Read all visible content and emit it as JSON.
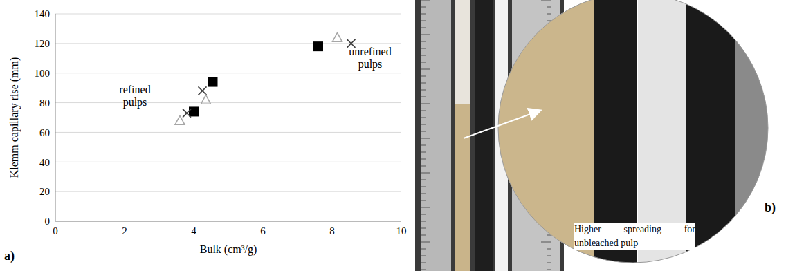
{
  "chart_data": {
    "type": "scatter",
    "x_label": "Bulk (cm³/g)",
    "y_label": "Klemm capillary rise (mm)",
    "xlim": [
      0,
      10
    ],
    "xticks": [
      0,
      2,
      4,
      6,
      8,
      10
    ],
    "ylim": [
      0,
      140
    ],
    "yticks": [
      0,
      20,
      40,
      60,
      80,
      100,
      120,
      140
    ],
    "grid": true,
    "series": [
      {
        "color": "#000000",
        "marker": "square",
        "x": [
          4.0,
          4.55,
          7.6
        ],
        "values": [
          74,
          94,
          118
        ]
      },
      {
        "color": "#404040",
        "marker": "x",
        "x": [
          3.8,
          4.25,
          8.55
        ],
        "values": [
          73,
          88,
          120
        ]
      },
      {
        "color": "#a6a6a6",
        "marker": "triangle_open",
        "x": [
          3.6,
          4.35,
          8.15
        ],
        "values": [
          68,
          82,
          124
        ]
      }
    ],
    "annotations": [
      {
        "text": "refined pulps",
        "x": 2.3,
        "y": 82
      },
      {
        "text": "unrefined pulps",
        "x": 9.1,
        "y": 108
      }
    ]
  },
  "panel_labels": [
    "a)",
    "b)"
  ],
  "photo_caption": "Higher spreading for unbleached pulp"
}
